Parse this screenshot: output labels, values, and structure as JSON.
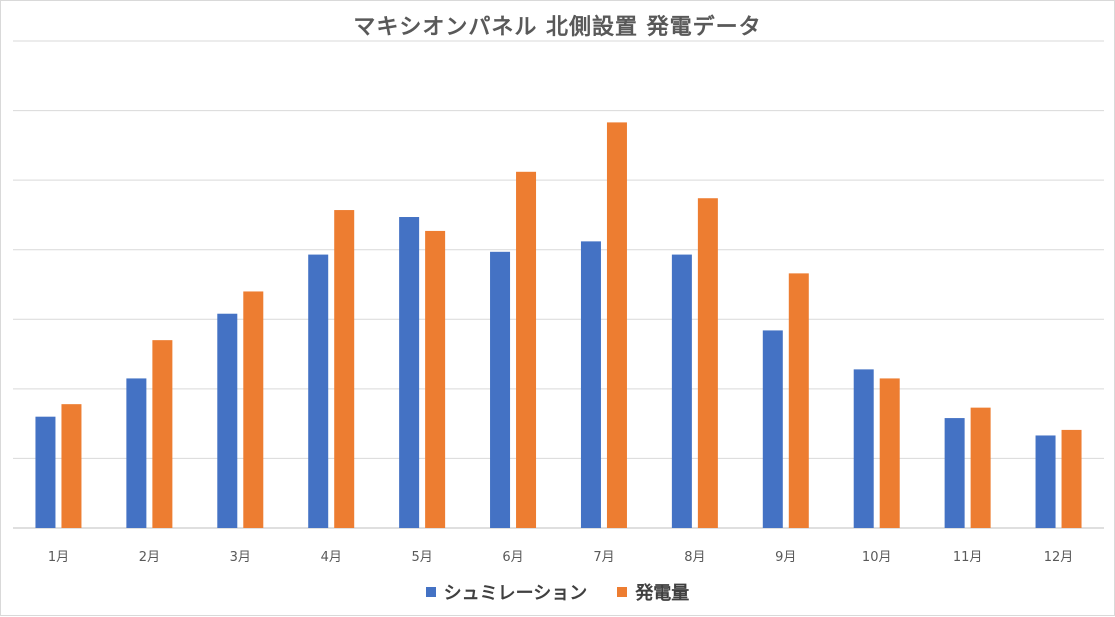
{
  "chart_data": {
    "type": "bar",
    "title": "マキシオンパネル 北側設置 発電データ",
    "categories": [
      "1月",
      "2月",
      "3月",
      "4月",
      "5月",
      "6月",
      "7月",
      "8月",
      "9月",
      "10月",
      "11月",
      "12月"
    ],
    "series": [
      {
        "name": "シュミレーション",
        "color": "#4472c4",
        "values": [
          1.6,
          2.15,
          3.08,
          3.93,
          4.47,
          3.97,
          4.12,
          3.93,
          2.84,
          2.28,
          1.58,
          1.33
        ]
      },
      {
        "name": "発電量",
        "color": "#ed7d31",
        "values": [
          1.78,
          2.7,
          3.4,
          4.57,
          4.27,
          5.12,
          5.83,
          4.74,
          3.66,
          2.15,
          1.73,
          1.41
        ]
      }
    ],
    "ylim": [
      0,
      7
    ],
    "gridlines": 7,
    "xlabel": "",
    "ylabel": "",
    "legend_position": "bottom"
  }
}
